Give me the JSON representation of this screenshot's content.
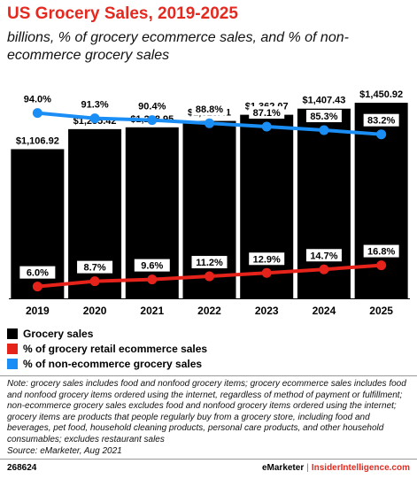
{
  "title": "US Grocery Sales, 2019-2025",
  "subtitle": "billions, % of grocery ecommerce sales, and % of non-ecommerce grocery sales",
  "colors": {
    "bars": "#000000",
    "ecommerce": "#e5231b",
    "nonecommerce": "#1b8ef5",
    "title": "#e5291f"
  },
  "chart_data": {
    "type": "bar",
    "categories": [
      "2019",
      "2020",
      "2021",
      "2022",
      "2023",
      "2024",
      "2025"
    ],
    "series": [
      {
        "name": "Grocery sales",
        "type": "bar",
        "values": [
          1106.92,
          1255.42,
          1268.95,
          1316.41,
          1362.07,
          1407.43,
          1450.92
        ],
        "labels": [
          "$1,106.92",
          "$1,255.42",
          "$1,268.95",
          "$1,316.41",
          "$1,362.07",
          "$1,407.43",
          "$1,450.92"
        ]
      },
      {
        "name": "% of grocery retail ecommerce sales",
        "type": "line",
        "values": [
          6.0,
          8.7,
          9.6,
          11.2,
          12.9,
          14.7,
          16.8
        ],
        "labels": [
          "6.0%",
          "8.7%",
          "9.6%",
          "11.2%",
          "12.9%",
          "14.7%",
          "16.8%"
        ]
      },
      {
        "name": "% of non-ecommerce grocery sales",
        "type": "line",
        "values": [
          94.0,
          91.3,
          90.4,
          88.8,
          87.1,
          85.3,
          83.2
        ],
        "labels": [
          "94.0%",
          "91.3%",
          "90.4%",
          "88.8%",
          "87.1%",
          "85.3%",
          "83.2%"
        ]
      }
    ],
    "ylim": [
      0,
      1550
    ],
    "line_ylim": [
      0,
      110
    ],
    "legend": "bottom-left"
  },
  "legend": [
    {
      "label": "Grocery sales"
    },
    {
      "label": "% of grocery retail ecommerce sales"
    },
    {
      "label": "% of non-ecommerce grocery sales"
    }
  ],
  "note": "Note: grocery sales includes food and nonfood grocery items; grocery ecommerce sales includes food and nonfood grocery items ordered using the internet, regardless of method of payment or fulfillment; non-ecommerce grocery sales excludes food and nonfood grocery items ordered using the internet; grocery items are products that people regularly buy from a grocery store, including food and beverages, pet food, household cleaning products, personal care products, and other household consumables; excludes restaurant sales",
  "source": "Source: eMarketer, Aug 2021",
  "footer": {
    "chart_id": "268624",
    "brand1": "eMarketer",
    "separator": "|",
    "brand2": "InsiderIntelligence.com"
  }
}
